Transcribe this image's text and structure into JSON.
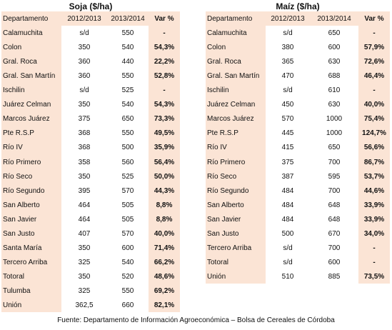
{
  "tables": [
    {
      "title": "Soja ($/ha)",
      "columns": [
        "Departamento",
        "2012/2013",
        "2013/2014",
        "Var %"
      ],
      "rows": [
        [
          "Calamuchita",
          "s/d",
          "550",
          "-"
        ],
        [
          "Colon",
          "350",
          "540",
          "54,3%"
        ],
        [
          "Gral. Roca",
          "360",
          "440",
          "22,2%"
        ],
        [
          "Gral. San Martín",
          "360",
          "550",
          "52,8%"
        ],
        [
          "Ischilin",
          "s/d",
          "525",
          "-"
        ],
        [
          "Juárez Celman",
          "350",
          "540",
          "54,3%"
        ],
        [
          "Marcos Juárez",
          "375",
          "650",
          "73,3%"
        ],
        [
          "Pte R.S.P",
          "368",
          "550",
          "49,5%"
        ],
        [
          "Río IV",
          "368",
          "500",
          "35,9%"
        ],
        [
          "Río Primero",
          "358",
          "560",
          "56,4%"
        ],
        [
          "Río Seco",
          "350",
          "525",
          "50,0%"
        ],
        [
          "Río Segundo",
          "395",
          "570",
          "44,3%"
        ],
        [
          "San Alberto",
          "464",
          "505",
          "8,8%"
        ],
        [
          "San Javier",
          "464",
          "505",
          "8,8%"
        ],
        [
          "San Justo",
          "407",
          "570",
          "40,0%"
        ],
        [
          "Santa María",
          "350",
          "600",
          "71,4%"
        ],
        [
          "Tercero Arriba",
          "325",
          "540",
          "66,2%"
        ],
        [
          "Totoral",
          "350",
          "520",
          "48,6%"
        ],
        [
          "Tulumba",
          "325",
          "550",
          "69,2%"
        ],
        [
          "Unión",
          "362,5",
          "660",
          "82,1%"
        ]
      ]
    },
    {
      "title": "Maíz ($/ha)",
      "columns": [
        "Departamento",
        "2012/2013",
        "2013/2014",
        "Var %"
      ],
      "rows": [
        [
          "Calamuchita",
          "s/d",
          "650",
          "-"
        ],
        [
          "Colon",
          "380",
          "600",
          "57,9%"
        ],
        [
          "Gral. Roca",
          "365",
          "630",
          "72,6%"
        ],
        [
          "Gral. San Martín",
          "470",
          "688",
          "46,4%"
        ],
        [
          "Ischilin",
          "s/d",
          "610",
          "-"
        ],
        [
          "Juárez Celman",
          "450",
          "630",
          "40,0%"
        ],
        [
          "Marcos Juárez",
          "570",
          "1000",
          "75,4%"
        ],
        [
          "Pte R.S.P",
          "445",
          "1000",
          "124,7%"
        ],
        [
          "Río IV",
          "415",
          "650",
          "56,6%"
        ],
        [
          "Río Primero",
          "375",
          "700",
          "86,7%"
        ],
        [
          "Río Seco",
          "387",
          "595",
          "53,7%"
        ],
        [
          "Río Segundo",
          "484",
          "700",
          "44,6%"
        ],
        [
          "San Alberto",
          "484",
          "648",
          "33,9%"
        ],
        [
          "San Javier",
          "484",
          "648",
          "33,9%"
        ],
        [
          "San Justo",
          "500",
          "670",
          "34,0%"
        ],
        [
          "Tercero Arriba",
          "s/d",
          "700",
          "-"
        ],
        [
          "Totoral",
          "s/d",
          "600",
          "-"
        ],
        [
          "Unión",
          "510",
          "885",
          "73,5%"
        ]
      ]
    }
  ],
  "source": "Fuente: Departamento de Información Agroeconómica – Bolsa de Cereales de Córdoba"
}
